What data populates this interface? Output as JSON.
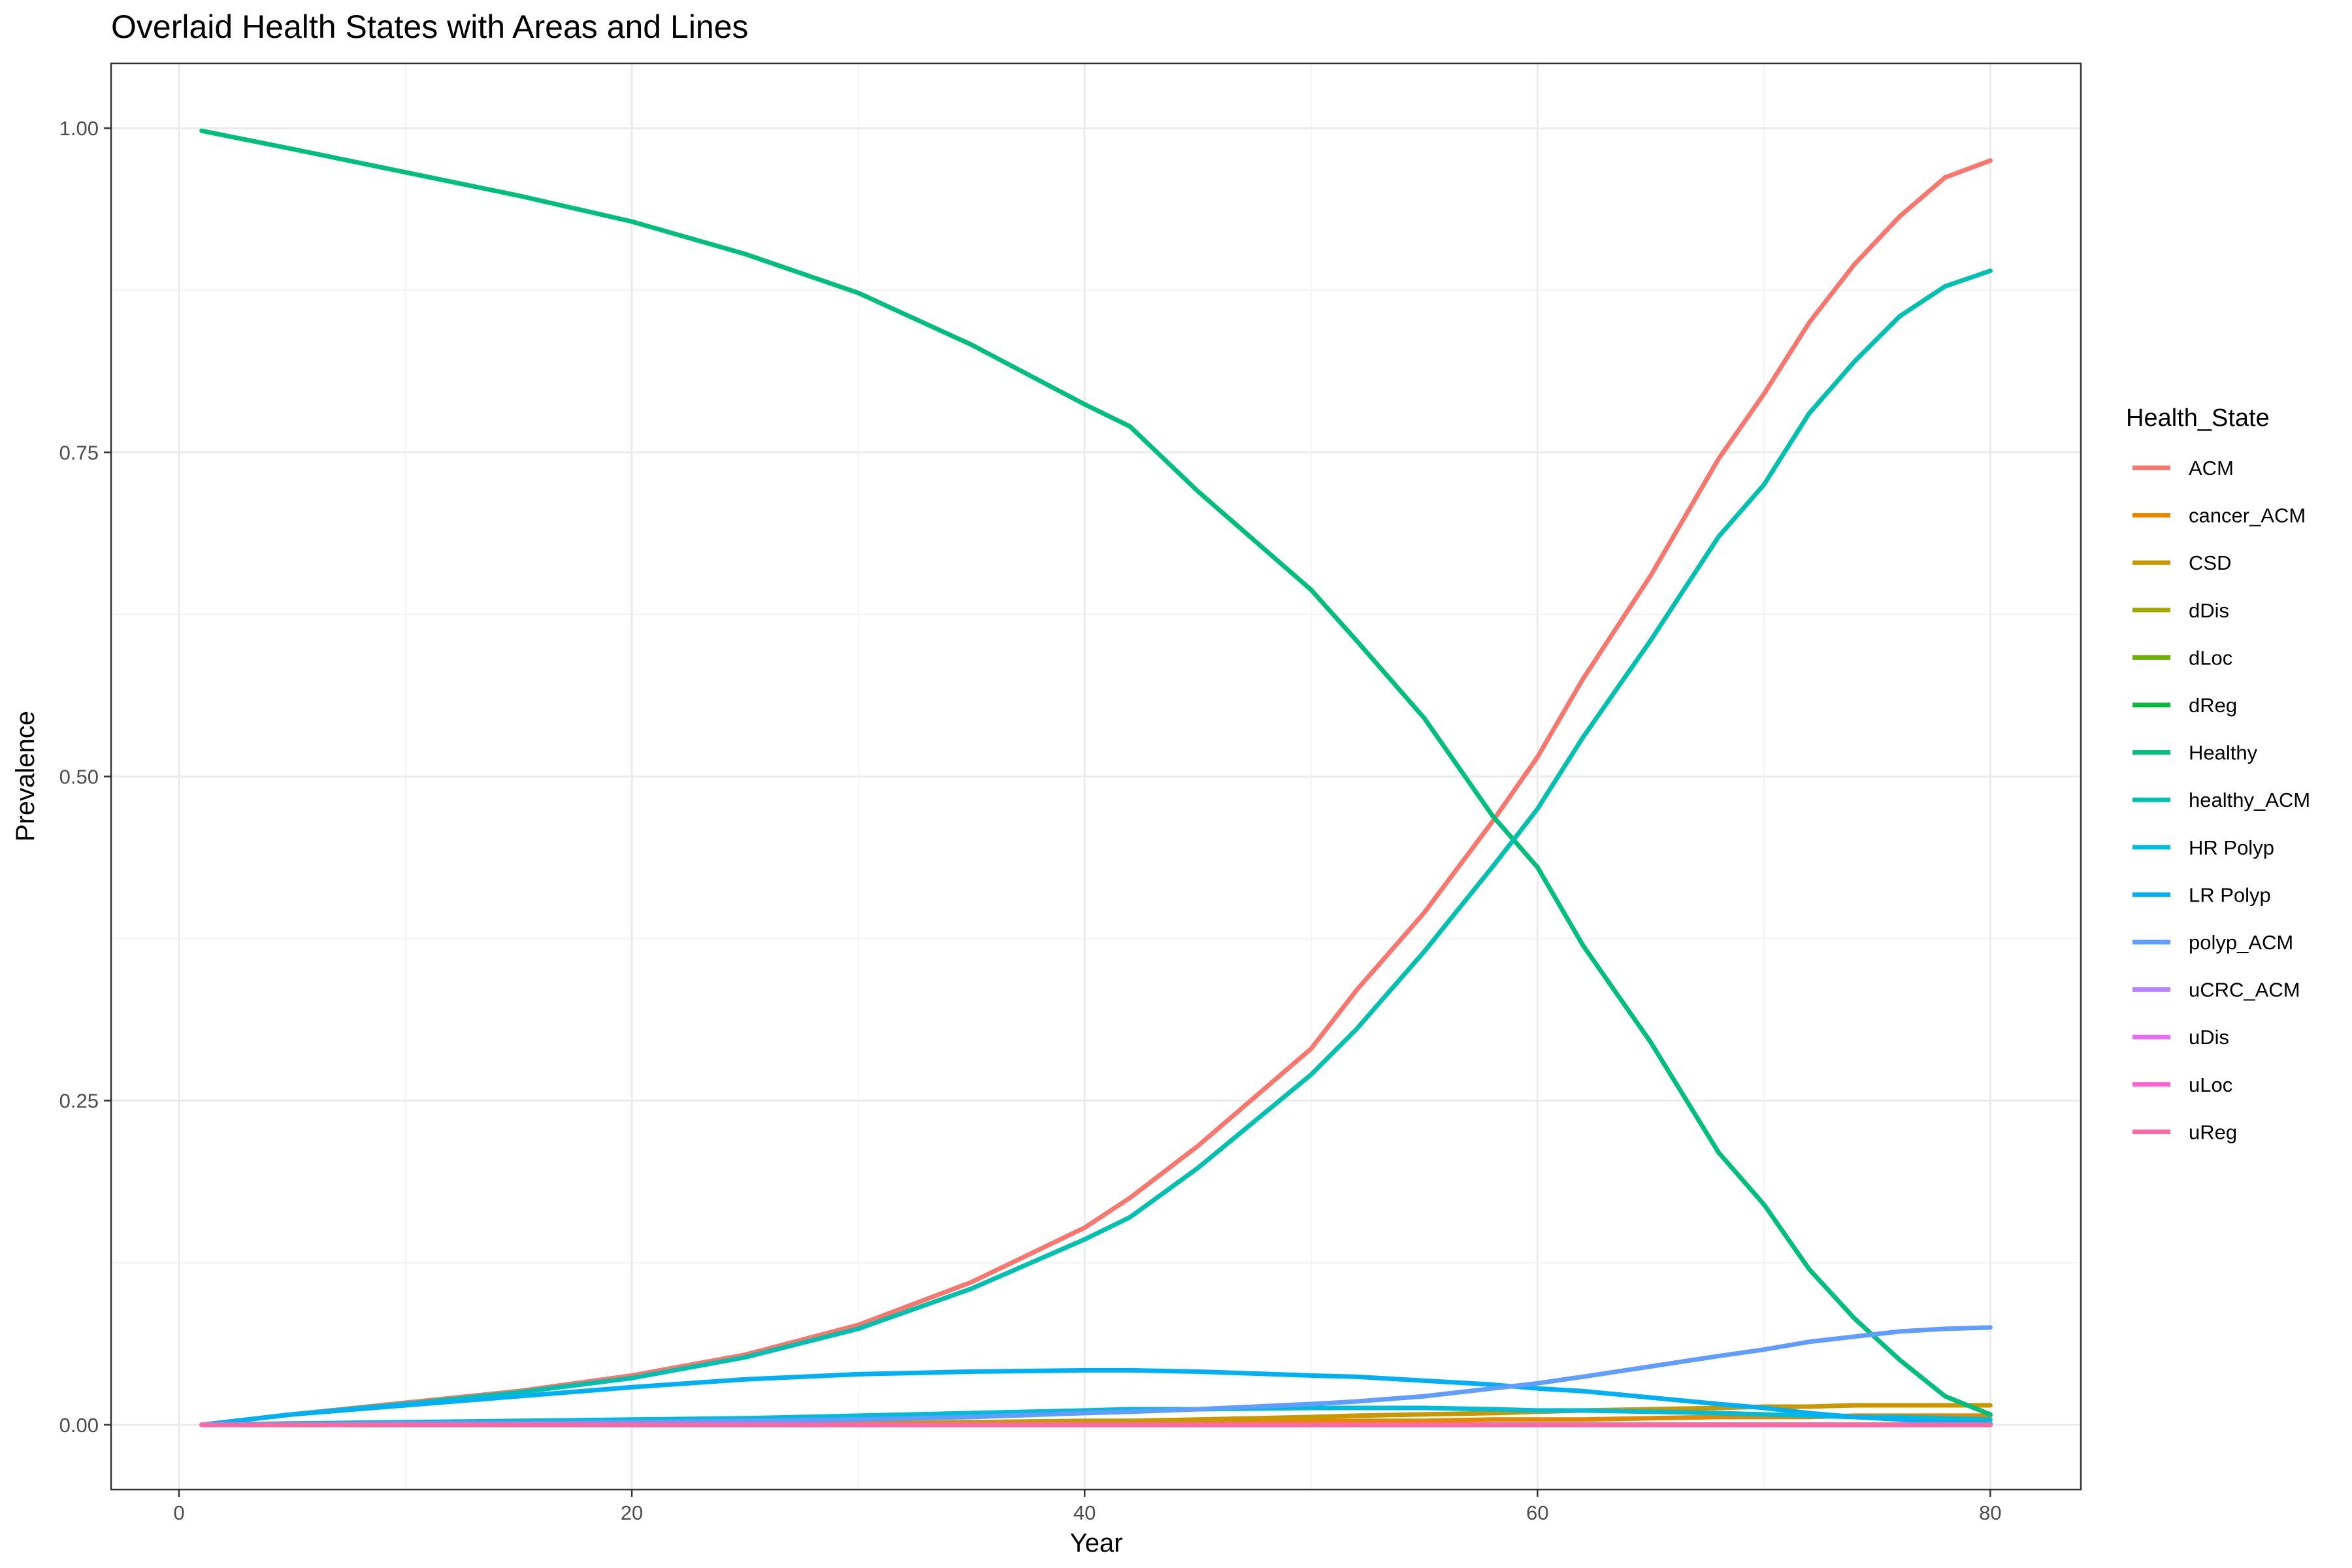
{
  "chart_data": {
    "type": "line",
    "title": "Overlaid Health States with Areas and Lines",
    "xlabel": "Year",
    "ylabel": "Prevalence",
    "xlim": [
      -3,
      84
    ],
    "ylim": [
      -0.05,
      1.05
    ],
    "x_ticks": [
      0,
      20,
      40,
      60,
      80
    ],
    "x_tick_labels": [
      "0",
      "20",
      "40",
      "60",
      "80"
    ],
    "x_minor_ticks": [
      10,
      30,
      50,
      70
    ],
    "y_ticks": [
      0,
      0.25,
      0.5,
      0.75,
      1.0
    ],
    "y_tick_labels": [
      "0.00",
      "0.25",
      "0.50",
      "0.75",
      "1.00"
    ],
    "y_minor_ticks": [
      0.125,
      0.375,
      0.625,
      0.875
    ],
    "grid": true,
    "legend": {
      "title": "Health_State",
      "position": "right"
    },
    "x": [
      1,
      5,
      10,
      15,
      20,
      25,
      30,
      35,
      40,
      42,
      45,
      50,
      52,
      55,
      58,
      60,
      62,
      65,
      68,
      70,
      72,
      74,
      76,
      78,
      80
    ],
    "series": [
      {
        "name": "ACM",
        "color": "#F8766D",
        "values": [
          0.0,
          0.008,
          0.017,
          0.026,
          0.038,
          0.054,
          0.077,
          0.11,
          0.152,
          0.175,
          0.215,
          0.29,
          0.335,
          0.395,
          0.465,
          0.515,
          0.575,
          0.655,
          0.745,
          0.795,
          0.85,
          0.895,
          0.932,
          0.962,
          0.975
        ]
      },
      {
        "name": "cancer_ACM",
        "color": "#E58700",
        "values": [
          0.0,
          0.0,
          0.0,
          0.0,
          0.0,
          0.0,
          0.0,
          0.001,
          0.001,
          0.001,
          0.002,
          0.003,
          0.003,
          0.003,
          0.004,
          0.004,
          0.004,
          0.005,
          0.006,
          0.006,
          0.006,
          0.007,
          0.007,
          0.007,
          0.007
        ]
      },
      {
        "name": "CSD",
        "color": "#C99800",
        "values": [
          0.0,
          0.0,
          0.0,
          0.0,
          0.0,
          0.001,
          0.001,
          0.002,
          0.003,
          0.003,
          0.004,
          0.006,
          0.007,
          0.008,
          0.009,
          0.01,
          0.011,
          0.012,
          0.013,
          0.014,
          0.014,
          0.015,
          0.015,
          0.015,
          0.015
        ]
      },
      {
        "name": "dDis",
        "color": "#A3A500",
        "values": [
          0,
          0,
          0,
          0,
          0,
          0,
          0,
          0,
          0,
          0,
          0,
          0,
          0,
          0,
          0,
          0,
          0,
          0,
          0,
          0,
          0,
          0,
          0,
          0,
          0
        ]
      },
      {
        "name": "dLoc",
        "color": "#6BB100",
        "values": [
          0,
          0,
          0,
          0,
          0,
          0,
          0,
          0,
          0,
          0,
          0,
          0,
          0,
          0,
          0,
          0,
          0,
          0,
          0,
          0,
          0,
          0,
          0,
          0,
          0
        ]
      },
      {
        "name": "dReg",
        "color": "#00BA38",
        "values": [
          0,
          0,
          0,
          0,
          0,
          0,
          0,
          0,
          0,
          0,
          0,
          0,
          0,
          0,
          0,
          0,
          0,
          0,
          0,
          0,
          0,
          0,
          0,
          0,
          0
        ]
      },
      {
        "name": "Healthy",
        "color": "#00BF7D",
        "values": [
          0.998,
          0.984,
          0.966,
          0.948,
          0.928,
          0.903,
          0.873,
          0.833,
          0.787,
          0.77,
          0.72,
          0.644,
          0.605,
          0.545,
          0.47,
          0.43,
          0.37,
          0.295,
          0.21,
          0.17,
          0.12,
          0.082,
          0.05,
          0.022,
          0.008
        ]
      },
      {
        "name": "healthy_ACM",
        "color": "#00C0AF",
        "values": [
          0.0,
          0.008,
          0.016,
          0.025,
          0.036,
          0.052,
          0.074,
          0.105,
          0.143,
          0.16,
          0.198,
          0.27,
          0.305,
          0.365,
          0.43,
          0.475,
          0.53,
          0.605,
          0.685,
          0.725,
          0.78,
          0.82,
          0.855,
          0.878,
          0.89
        ]
      },
      {
        "name": "HR Polyp",
        "color": "#00BCD8",
        "values": [
          0.0,
          0.001,
          0.002,
          0.003,
          0.004,
          0.005,
          0.007,
          0.009,
          0.011,
          0.012,
          0.012,
          0.013,
          0.013,
          0.013,
          0.012,
          0.011,
          0.011,
          0.01,
          0.009,
          0.008,
          0.007,
          0.006,
          0.006,
          0.005,
          0.004
        ]
      },
      {
        "name": "LR Polyp",
        "color": "#00B0F6",
        "values": [
          0.0,
          0.008,
          0.015,
          0.022,
          0.029,
          0.035,
          0.039,
          0.041,
          0.042,
          0.042,
          0.041,
          0.038,
          0.037,
          0.034,
          0.031,
          0.028,
          0.026,
          0.021,
          0.016,
          0.013,
          0.009,
          0.006,
          0.004,
          0.002,
          0.001
        ]
      },
      {
        "name": "polyp_ACM",
        "color": "#619CFF",
        "values": [
          0.0,
          0.0,
          0.001,
          0.001,
          0.002,
          0.003,
          0.004,
          0.006,
          0.009,
          0.01,
          0.012,
          0.016,
          0.018,
          0.022,
          0.028,
          0.032,
          0.037,
          0.045,
          0.053,
          0.058,
          0.064,
          0.068,
          0.072,
          0.074,
          0.075
        ]
      },
      {
        "name": "uCRC_ACM",
        "color": "#B983FF",
        "values": [
          0,
          0,
          0,
          0,
          0,
          0,
          0,
          0,
          0,
          0,
          0,
          0,
          0,
          0,
          0,
          0,
          0,
          0,
          0,
          0,
          0,
          0,
          0,
          0,
          0
        ]
      },
      {
        "name": "uDis",
        "color": "#E76BF3",
        "values": [
          0,
          0,
          0,
          0,
          0,
          0,
          0,
          0,
          0,
          0,
          0,
          0,
          0,
          0,
          0,
          0,
          0,
          0,
          0,
          0,
          0,
          0,
          0,
          0,
          0
        ]
      },
      {
        "name": "uLoc",
        "color": "#FD61D1",
        "values": [
          0,
          0,
          0,
          0,
          0,
          0,
          0,
          0,
          0,
          0,
          0,
          0,
          0,
          0,
          0,
          0,
          0,
          0,
          0,
          0,
          0,
          0,
          0,
          0,
          0
        ]
      },
      {
        "name": "uReg",
        "color": "#FF67A4",
        "values": [
          0,
          0,
          0,
          0,
          0,
          0,
          0,
          0,
          0,
          0,
          0,
          0,
          0,
          0,
          0,
          0,
          0,
          0,
          0,
          0,
          0,
          0,
          0,
          0,
          0
        ]
      }
    ]
  }
}
